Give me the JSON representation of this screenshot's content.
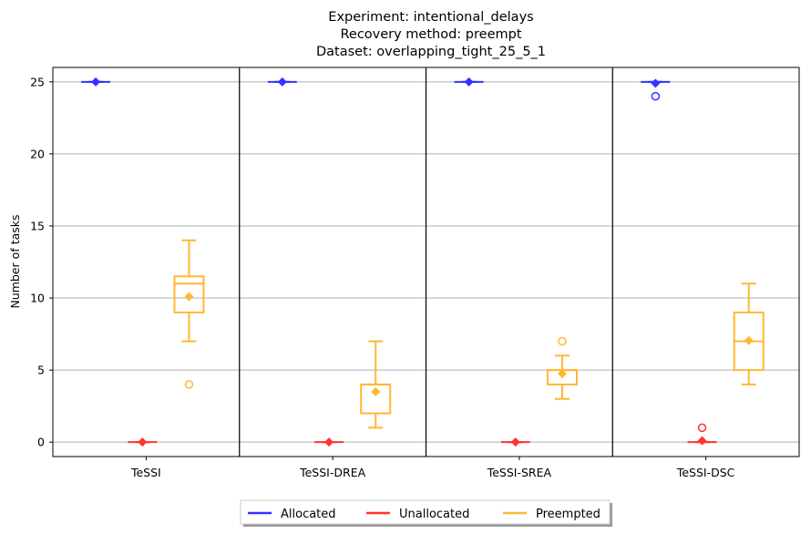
{
  "chart_data": {
    "type": "box",
    "title_lines": [
      "Experiment: intentional_delays",
      "Recovery method: preempt",
      "Dataset: overlapping_tight_25_5_1"
    ],
    "ylabel": "Number of tasks",
    "xlabel": "",
    "ylim": [
      -1,
      26
    ],
    "yticks": [
      0,
      5,
      10,
      15,
      20,
      25
    ],
    "grid": "y",
    "legend_position": "bottom-center",
    "categories": [
      "TeSSI",
      "TeSSI-DREA",
      "TeSSI-SREA",
      "TeSSI-DSC"
    ],
    "series": [
      {
        "name": "Allocated",
        "color": "#3333ff",
        "boxes": [
          {
            "whislo": 25,
            "q1": 25,
            "med": 25,
            "q3": 25,
            "whishi": 25,
            "mean": 25,
            "fliers": []
          },
          {
            "whislo": 25,
            "q1": 25,
            "med": 25,
            "q3": 25,
            "whishi": 25,
            "mean": 25,
            "fliers": []
          },
          {
            "whislo": 25,
            "q1": 25,
            "med": 25,
            "q3": 25,
            "whishi": 25,
            "mean": 25,
            "fliers": []
          },
          {
            "whislo": 25,
            "q1": 25,
            "med": 25,
            "q3": 25,
            "whishi": 25,
            "mean": 24.9,
            "fliers": [
              24
            ]
          }
        ]
      },
      {
        "name": "Unallocated",
        "color": "#ff3333",
        "boxes": [
          {
            "whislo": 0,
            "q1": 0,
            "med": 0,
            "q3": 0,
            "whishi": 0,
            "mean": 0,
            "fliers": []
          },
          {
            "whislo": 0,
            "q1": 0,
            "med": 0,
            "q3": 0,
            "whishi": 0,
            "mean": 0,
            "fliers": []
          },
          {
            "whislo": 0,
            "q1": 0,
            "med": 0,
            "q3": 0,
            "whishi": 0,
            "mean": 0,
            "fliers": []
          },
          {
            "whislo": 0,
            "q1": 0,
            "med": 0,
            "q3": 0,
            "whishi": 0,
            "mean": 0.1,
            "fliers": [
              1
            ]
          }
        ]
      },
      {
        "name": "Preempted",
        "color": "#ffb733",
        "boxes": [
          {
            "whislo": 7,
            "q1": 9,
            "med": 11,
            "q3": 11.5,
            "whishi": 14,
            "mean": 10.1,
            "fliers": [
              4
            ]
          },
          {
            "whislo": 1,
            "q1": 2,
            "med": 4,
            "q3": 4,
            "whishi": 7,
            "mean": 3.5,
            "fliers": []
          },
          {
            "whislo": 3,
            "q1": 4,
            "med": 5,
            "q3": 5,
            "whishi": 6,
            "mean": 4.75,
            "fliers": [
              7
            ]
          },
          {
            "whislo": 4,
            "q1": 5,
            "med": 7,
            "q3": 9,
            "whishi": 11,
            "mean": 7.05,
            "fliers": []
          }
        ]
      }
    ]
  }
}
